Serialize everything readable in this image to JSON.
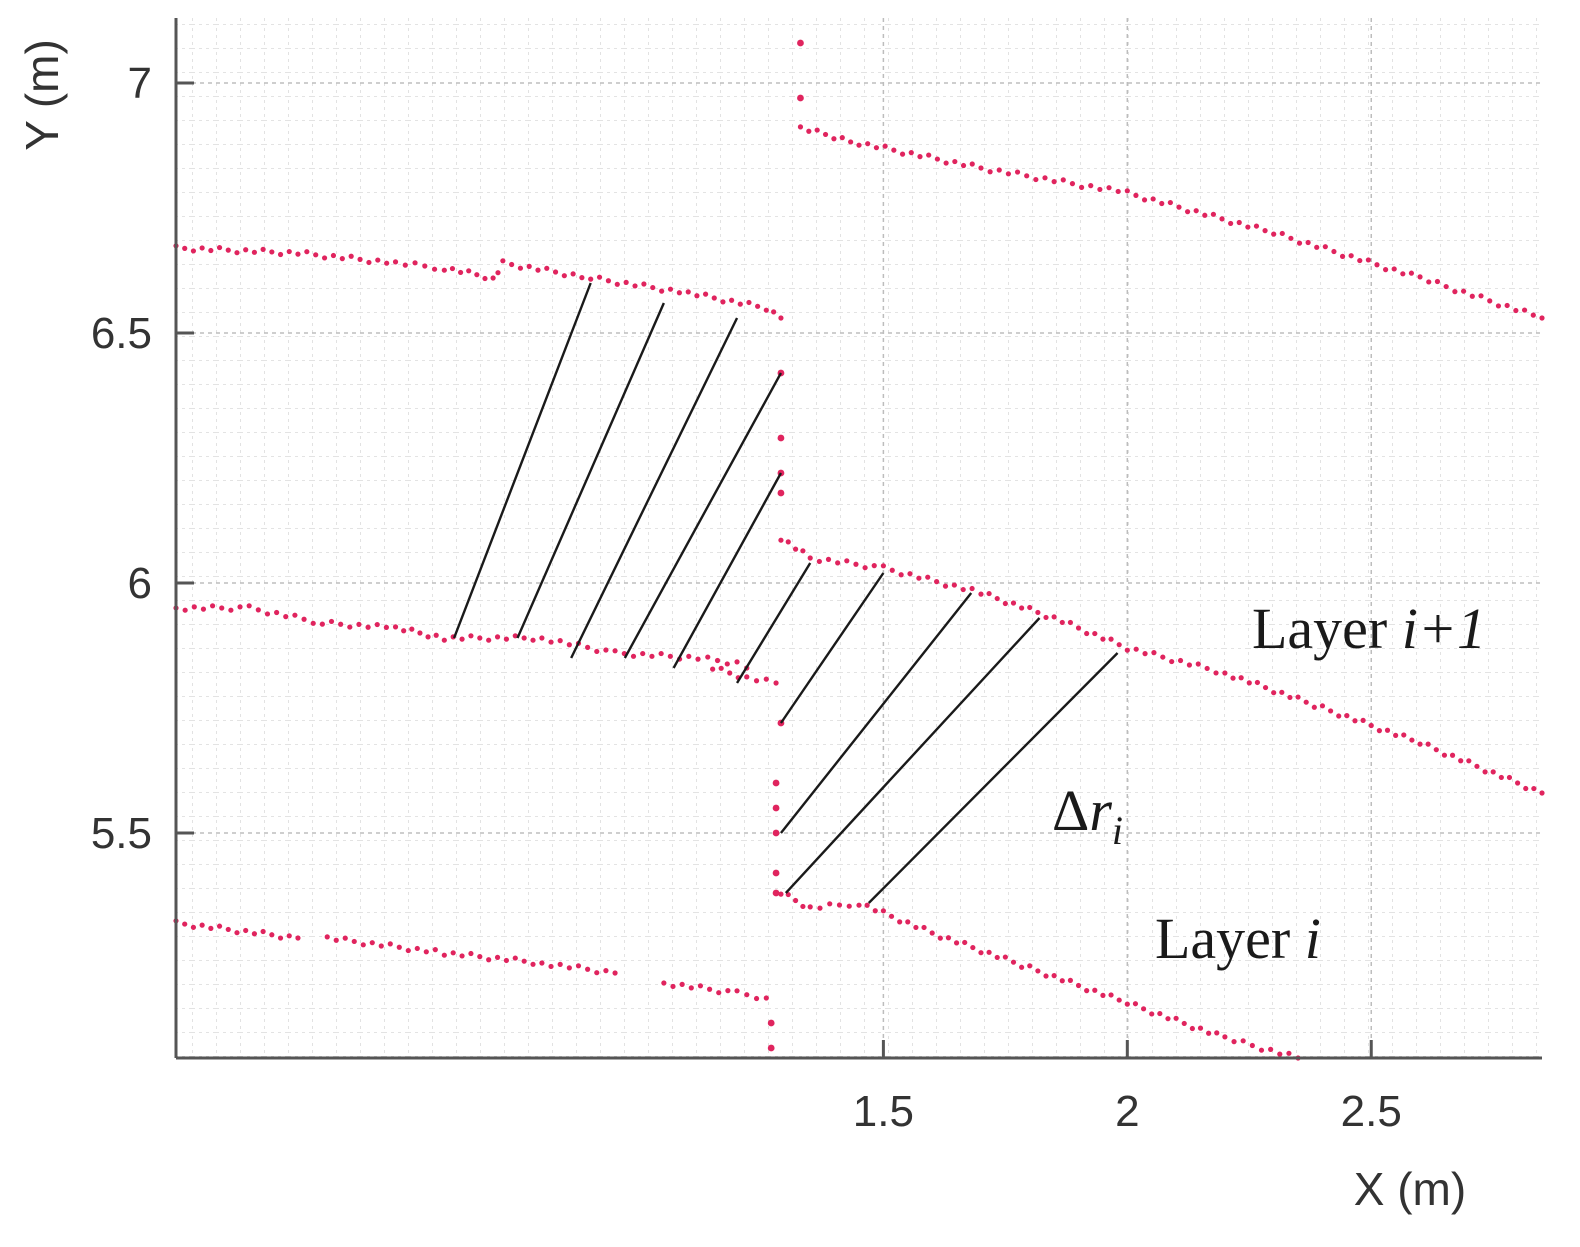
{
  "chart_data": {
    "type": "scatter",
    "xlabel": "X (m)",
    "ylabel": "Y (m)",
    "xlim": [
      0.05,
      2.85
    ],
    "ylim": [
      5.05,
      7.13
    ],
    "x_ticks": [
      {
        "value": 1.5,
        "label": "1.5"
      },
      {
        "value": 2.0,
        "label": "2"
      },
      {
        "value": 2.5,
        "label": "2.5"
      }
    ],
    "y_ticks": [
      {
        "value": 5.5,
        "label": "5.5"
      },
      {
        "value": 6.0,
        "label": "6"
      },
      {
        "value": 6.5,
        "label": "6.5"
      },
      {
        "value": 7.0,
        "label": "7"
      }
    ],
    "grid": true,
    "point_color": "#e0245e",
    "line_color": "#1a1a1a",
    "annotations": {
      "layer_upper": {
        "prefix": "Layer ",
        "italic": "i+1"
      },
      "layer_lower": {
        "prefix": "Layer ",
        "italic": "i"
      },
      "delta": {
        "symbol": "Δ",
        "italic": "r",
        "sub": "i"
      }
    },
    "polylines": [
      {
        "points": [
          [
            0.05,
            6.67
          ],
          [
            0.3,
            6.66
          ],
          [
            0.5,
            6.64
          ],
          [
            0.6,
            6.63
          ],
          [
            0.7,
            6.61
          ],
          [
            0.72,
            6.64
          ],
          [
            0.9,
            6.61
          ],
          [
            1.1,
            6.58
          ],
          [
            1.26,
            6.55
          ],
          [
            1.29,
            6.53
          ]
        ]
      },
      {
        "points": [
          [
            1.33,
            6.91
          ],
          [
            1.45,
            6.88
          ],
          [
            1.7,
            6.83
          ],
          [
            2.0,
            6.78
          ],
          [
            2.3,
            6.7
          ],
          [
            2.6,
            6.61
          ],
          [
            2.85,
            6.53
          ]
        ]
      },
      {
        "points": [
          [
            0.05,
            5.95
          ],
          [
            0.2,
            5.95
          ],
          [
            0.35,
            5.92
          ],
          [
            0.5,
            5.91
          ],
          [
            0.6,
            5.89
          ],
          [
            0.8,
            5.89
          ],
          [
            0.95,
            5.86
          ],
          [
            1.12,
            5.85
          ],
          [
            1.2,
            5.84
          ],
          [
            1.22,
            5.83
          ]
        ]
      },
      {
        "points": [
          [
            1.15,
            5.83
          ],
          [
            1.22,
            5.81
          ],
          [
            1.28,
            5.8
          ]
        ]
      },
      {
        "points": [
          [
            1.29,
            6.09
          ],
          [
            1.35,
            6.05
          ],
          [
            1.5,
            6.03
          ],
          [
            1.7,
            5.98
          ],
          [
            1.85,
            5.93
          ],
          [
            2.0,
            5.87
          ],
          [
            2.2,
            5.82
          ],
          [
            2.4,
            5.75
          ],
          [
            2.6,
            5.68
          ],
          [
            2.75,
            5.62
          ],
          [
            2.85,
            5.58
          ]
        ]
      },
      {
        "points": [
          [
            0.05,
            5.32
          ],
          [
            0.3,
            5.29
          ]
        ]
      },
      {
        "points": [
          [
            0.36,
            5.29
          ],
          [
            0.6,
            5.26
          ],
          [
            0.8,
            5.24
          ],
          [
            0.95,
            5.22
          ]
        ]
      },
      {
        "points": [
          [
            1.05,
            5.2
          ],
          [
            1.2,
            5.18
          ],
          [
            1.26,
            5.17
          ]
        ]
      },
      {
        "points": [
          [
            1.29,
            5.38
          ],
          [
            1.35,
            5.35
          ],
          [
            1.45,
            5.36
          ],
          [
            1.6,
            5.3
          ],
          [
            1.8,
            5.23
          ],
          [
            2.0,
            5.16
          ],
          [
            2.2,
            5.09
          ],
          [
            2.35,
            5.05
          ]
        ]
      }
    ],
    "scatter_points": [
      [
        1.33,
        7.08
      ],
      [
        1.33,
        6.97
      ],
      [
        1.29,
        6.42
      ],
      [
        1.29,
        6.29
      ],
      [
        1.29,
        6.22
      ],
      [
        1.29,
        6.18
      ],
      [
        1.29,
        5.72
      ],
      [
        1.28,
        5.6
      ],
      [
        1.28,
        5.55
      ],
      [
        1.28,
        5.5
      ],
      [
        1.28,
        5.42
      ],
      [
        1.28,
        5.38
      ],
      [
        1.27,
        5.12
      ],
      [
        1.27,
        5.07
      ]
    ],
    "correspondence_lines": [
      [
        [
          0.62,
          5.89
        ],
        [
          0.9,
          6.6
        ]
      ],
      [
        [
          0.75,
          5.89
        ],
        [
          1.05,
          6.56
        ]
      ],
      [
        [
          0.86,
          5.85
        ],
        [
          1.2,
          6.53
        ]
      ],
      [
        [
          0.97,
          5.85
        ],
        [
          1.29,
          6.42
        ]
      ],
      [
        [
          1.07,
          5.83
        ],
        [
          1.29,
          6.22
        ]
      ],
      [
        [
          1.2,
          5.8
        ],
        [
          1.35,
          6.04
        ]
      ],
      [
        [
          1.29,
          5.72
        ],
        [
          1.5,
          6.02
        ]
      ],
      [
        [
          1.29,
          5.5
        ],
        [
          1.68,
          5.98
        ]
      ],
      [
        [
          1.3,
          5.38
        ],
        [
          1.82,
          5.93
        ]
      ],
      [
        [
          1.47,
          5.36
        ],
        [
          1.98,
          5.86
        ]
      ]
    ]
  }
}
